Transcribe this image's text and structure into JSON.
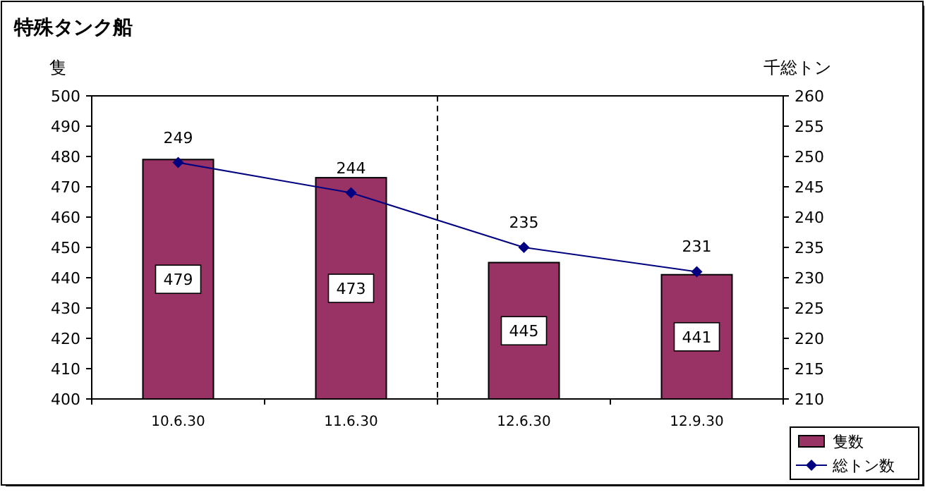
{
  "chart_data": {
    "type": "bar",
    "title": "特殊タンク船",
    "ylabel": "隻",
    "y2label": "千総トン",
    "categories": [
      "10.6.30",
      "11.6.30",
      "12.6.30",
      "12.9.30"
    ],
    "series": [
      {
        "name": "隻数",
        "color": "#993366",
        "values": [
          479,
          473,
          445,
          441
        ]
      },
      {
        "name": "総トン数",
        "type": "line",
        "axis": "y2",
        "color": "#000080",
        "marker": "diamond",
        "values": [
          249,
          244,
          235,
          231
        ]
      }
    ],
    "ylim": [
      400,
      500
    ],
    "yticks": [
      400,
      410,
      420,
      430,
      440,
      450,
      460,
      470,
      480,
      490,
      500
    ],
    "y2lim": [
      210,
      260
    ],
    "y2ticks": [
      210,
      215,
      220,
      225,
      230,
      235,
      240,
      245,
      250,
      255,
      260
    ],
    "data_labels": true,
    "grid": false,
    "legend": "bottom right"
  }
}
